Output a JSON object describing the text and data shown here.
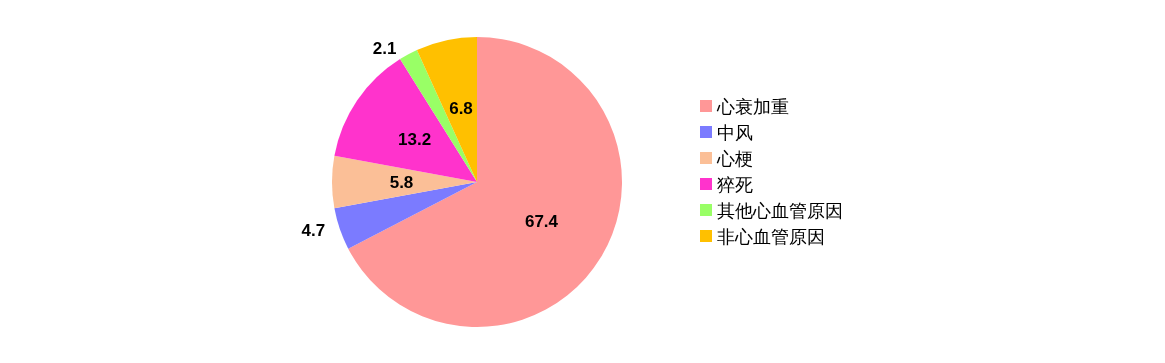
{
  "chart_data": {
    "type": "pie",
    "categories": [
      "心衰加重",
      "中风",
      "心梗",
      "猝死",
      "其他心血管原因",
      "非心血管原因"
    ],
    "values": [
      67.4,
      4.7,
      5.8,
      13.2,
      2.1,
      6.8
    ],
    "colors": [
      "#ff9797",
      "#7b7bff",
      "#fbbf97",
      "#ff33cc",
      "#99ff66",
      "#ffc000"
    ],
    "data_labels": true,
    "legend": "right"
  }
}
